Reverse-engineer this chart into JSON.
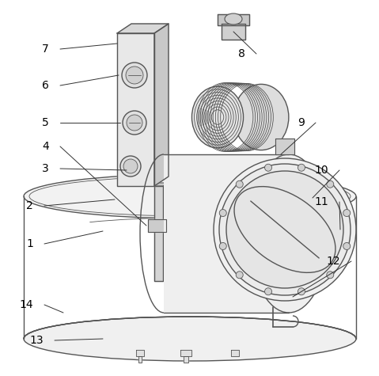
{
  "background_color": "#ffffff",
  "line_color": "#555555",
  "label_color": "#000000",
  "figure_width": 4.79,
  "figure_height": 4.75,
  "dpi": 100,
  "lw_main": 1.0,
  "lw_thin": 0.6,
  "label_fontsize": 10
}
